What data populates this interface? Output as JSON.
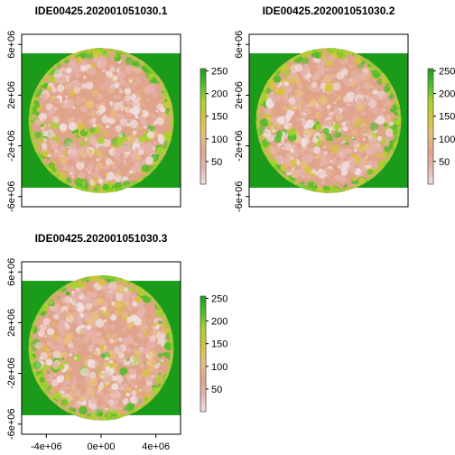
{
  "figure": {
    "colors": {
      "background_band": "#ffffff",
      "sky_green": "#1a9b1a",
      "ramp": [
        "#f0e0e0",
        "#e6b3ac",
        "#e0a48a",
        "#e8c07a",
        "#d8c43a",
        "#a8d22c",
        "#4fbe27",
        "#1a9b1a"
      ]
    }
  },
  "chart_data": [
    {
      "type": "heatmap",
      "title": "IDE00425.202001051030.1",
      "xlim": [
        -5800000,
        5800000
      ],
      "ylim": [
        -6800000,
        6800000
      ],
      "yticks": [
        -6000000,
        -2000000,
        2000000,
        6000000
      ],
      "ytick_labels": [
        "-6e+06",
        "-2e+06",
        "2e+06",
        "6e+06"
      ],
      "xticks": [],
      "xtick_labels": [],
      "colorbar": {
        "range": [
          0,
          255
        ],
        "ticks": [
          50,
          100,
          150,
          200,
          250
        ],
        "tick_labels": [
          "50",
          "100",
          "150",
          "200",
          "250"
        ]
      }
    },
    {
      "type": "heatmap",
      "title": "IDE00425.202001051030.2",
      "xlim": [
        -5800000,
        5800000
      ],
      "ylim": [
        -6800000,
        6800000
      ],
      "yticks": [
        -6000000,
        -2000000,
        2000000,
        6000000
      ],
      "ytick_labels": [
        "-6e+06",
        "-2e+06",
        "2e+06",
        "6e+06"
      ],
      "xticks": [],
      "xtick_labels": [],
      "colorbar": {
        "range": [
          0,
          255
        ],
        "ticks": [
          50,
          100,
          150,
          200,
          250
        ],
        "tick_labels": [
          "50",
          "100",
          "150",
          "200",
          "250"
        ]
      }
    },
    {
      "type": "heatmap",
      "title": "IDE00425.202001051030.3",
      "xlim": [
        -5800000,
        5800000
      ],
      "ylim": [
        -6800000,
        6800000
      ],
      "yticks": [
        -6000000,
        -2000000,
        2000000,
        6000000
      ],
      "ytick_labels": [
        "-6e+06",
        "-2e+06",
        "2e+06",
        "6e+06"
      ],
      "xticks": [
        -4000000,
        0,
        4000000
      ],
      "xtick_labels": [
        "-4e+06",
        "0e+00",
        "4e+06"
      ],
      "colorbar": {
        "range": [
          0,
          255
        ],
        "ticks": [
          50,
          100,
          150,
          200,
          250
        ],
        "tick_labels": [
          "50",
          "100",
          "150",
          "200",
          "250"
        ]
      }
    }
  ]
}
